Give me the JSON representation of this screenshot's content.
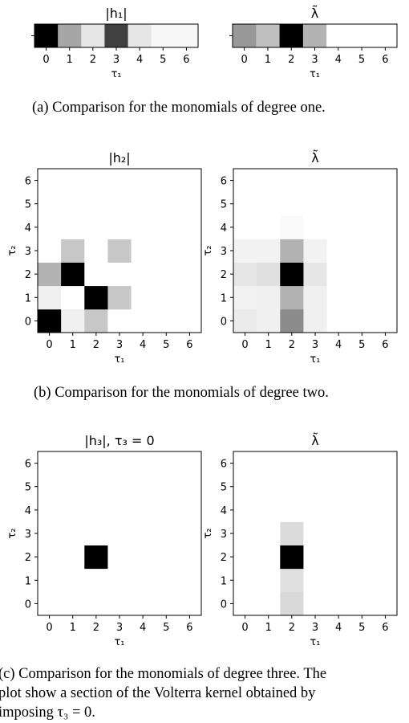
{
  "captions": {
    "a": "(a) Comparison for the monomials of degree one.",
    "b": "(b) Comparison for the monomials of degree two.",
    "c_line1": "(c) Comparison for the monomials of degree three. The",
    "c_line2": "plot show a section of the Volterra kernel obtained by",
    "c_line3": "imposing τ₃ = 0."
  },
  "chart_data": [
    {
      "type": "heatmap",
      "title": "|h₁|",
      "x_label": "τ₁",
      "x_ticks": [
        "0",
        "1",
        "2",
        "3",
        "4",
        "5",
        "6"
      ],
      "y_ticks": [
        ""
      ],
      "colormap": "gray_r",
      "values": [
        [
          1.0,
          0.35,
          0.1,
          0.75,
          0.1,
          0.03,
          0.03
        ]
      ]
    },
    {
      "type": "heatmap",
      "title": "λ̃",
      "x_label": "τ₁",
      "x_ticks": [
        "0",
        "1",
        "2",
        "3",
        "4",
        "5",
        "6"
      ],
      "y_ticks": [
        ""
      ],
      "colormap": "gray_r",
      "values": [
        [
          0.4,
          0.25,
          1.0,
          0.3,
          0.0,
          0.0,
          0.0
        ]
      ]
    },
    {
      "type": "heatmap",
      "title": "|h₂|",
      "x_label": "τ₁",
      "y_label": "τ₂",
      "x_ticks": [
        "0",
        "1",
        "2",
        "3",
        "4",
        "5",
        "6"
      ],
      "y_ticks": [
        "0",
        "1",
        "2",
        "3",
        "4",
        "5",
        "6"
      ],
      "colormap": "gray_r",
      "values": [
        [
          1.0,
          0.06,
          0.22,
          0.0,
          0.0,
          0.0,
          0.0
        ],
        [
          0.06,
          0.0,
          1.0,
          0.22,
          0.0,
          0.0,
          0.0
        ],
        [
          0.3,
          1.0,
          0.0,
          0.0,
          0.0,
          0.0,
          0.0
        ],
        [
          0.0,
          0.22,
          0.0,
          0.22,
          0.0,
          0.0,
          0.0
        ],
        [
          0.0,
          0.0,
          0.0,
          0.0,
          0.0,
          0.0,
          0.0
        ],
        [
          0.0,
          0.0,
          0.0,
          0.0,
          0.0,
          0.0,
          0.0
        ],
        [
          0.0,
          0.0,
          0.0,
          0.0,
          0.0,
          0.0,
          0.0
        ]
      ]
    },
    {
      "type": "heatmap",
      "title": "λ̃",
      "x_label": "τ₁",
      "y_label": "τ₂",
      "x_ticks": [
        "0",
        "1",
        "2",
        "3",
        "4",
        "5",
        "6"
      ],
      "y_ticks": [
        "0",
        "1",
        "2",
        "3",
        "4",
        "5",
        "6"
      ],
      "colormap": "gray_r",
      "values": [
        [
          0.08,
          0.06,
          0.45,
          0.06,
          0.0,
          0.0,
          0.0
        ],
        [
          0.05,
          0.06,
          0.3,
          0.06,
          0.0,
          0.0,
          0.0
        ],
        [
          0.1,
          0.12,
          1.0,
          0.1,
          0.0,
          0.0,
          0.0
        ],
        [
          0.05,
          0.05,
          0.3,
          0.05,
          0.0,
          0.0,
          0.0
        ],
        [
          0.0,
          0.0,
          0.02,
          0.0,
          0.0,
          0.0,
          0.0
        ],
        [
          0.0,
          0.0,
          0.0,
          0.0,
          0.0,
          0.0,
          0.0
        ],
        [
          0.0,
          0.0,
          0.0,
          0.0,
          0.0,
          0.0,
          0.0
        ]
      ]
    },
    {
      "type": "heatmap",
      "title": "|h₃|, τ₃ = 0",
      "x_label": "τ₁",
      "y_label": "τ₂",
      "x_ticks": [
        "0",
        "1",
        "2",
        "3",
        "4",
        "5",
        "6"
      ],
      "y_ticks": [
        "0",
        "1",
        "2",
        "3",
        "4",
        "5",
        "6"
      ],
      "colormap": "gray_r",
      "values": [
        [
          0.0,
          0.0,
          0.0,
          0.0,
          0.0,
          0.0,
          0.0
        ],
        [
          0.0,
          0.0,
          0.0,
          0.0,
          0.0,
          0.0,
          0.0
        ],
        [
          0.0,
          0.0,
          1.0,
          0.0,
          0.0,
          0.0,
          0.0
        ],
        [
          0.0,
          0.0,
          0.0,
          0.0,
          0.0,
          0.0,
          0.0
        ],
        [
          0.0,
          0.0,
          0.0,
          0.0,
          0.0,
          0.0,
          0.0
        ],
        [
          0.0,
          0.0,
          0.0,
          0.0,
          0.0,
          0.0,
          0.0
        ],
        [
          0.0,
          0.0,
          0.0,
          0.0,
          0.0,
          0.0,
          0.0
        ]
      ]
    },
    {
      "type": "heatmap",
      "title": "λ̃",
      "x_label": "τ₁",
      "y_label": "τ₂",
      "x_ticks": [
        "0",
        "1",
        "2",
        "3",
        "4",
        "5",
        "6"
      ],
      "y_ticks": [
        "0",
        "1",
        "2",
        "3",
        "4",
        "5",
        "6"
      ],
      "colormap": "gray_r",
      "values": [
        [
          0.0,
          0.0,
          0.15,
          0.0,
          0.0,
          0.0,
          0.0
        ],
        [
          0.0,
          0.0,
          0.12,
          0.0,
          0.0,
          0.0,
          0.0
        ],
        [
          0.0,
          0.0,
          1.0,
          0.0,
          0.0,
          0.0,
          0.0
        ],
        [
          0.0,
          0.0,
          0.14,
          0.0,
          0.0,
          0.0,
          0.0
        ],
        [
          0.0,
          0.0,
          0.0,
          0.0,
          0.0,
          0.0,
          0.0
        ],
        [
          0.0,
          0.0,
          0.0,
          0.0,
          0.0,
          0.0,
          0.0
        ],
        [
          0.0,
          0.0,
          0.0,
          0.0,
          0.0,
          0.0,
          0.0
        ]
      ]
    }
  ]
}
